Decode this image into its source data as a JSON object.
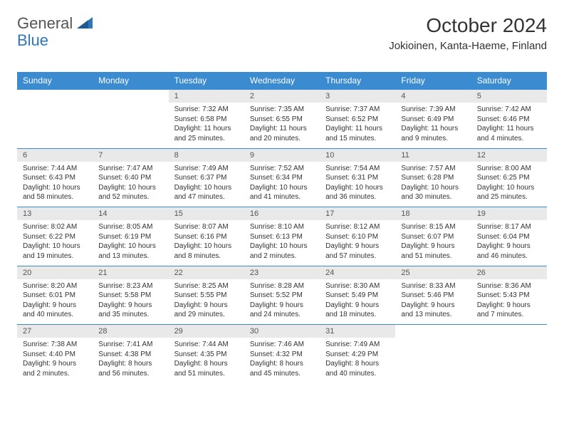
{
  "logo": {
    "general": "General",
    "blue": "Blue"
  },
  "title": "October 2024",
  "location": "Jokioinen, Kanta-Haeme, Finland",
  "weekdays": [
    "Sunday",
    "Monday",
    "Tuesday",
    "Wednesday",
    "Thursday",
    "Friday",
    "Saturday"
  ],
  "colors": {
    "header_bg": "#3b8bd0",
    "header_text": "#ffffff",
    "daynum_bg": "#e9e9e9",
    "border": "#3b8bd0",
    "logo_blue": "#2f77bb",
    "text": "#333333",
    "background": "#ffffff"
  },
  "fonts": {
    "title_size_pt": 21,
    "location_size_pt": 11,
    "weekday_size_pt": 9,
    "daynum_size_pt": 8,
    "cell_size_pt": 7.5
  },
  "weeks": [
    {
      "nums": [
        "",
        "",
        "1",
        "2",
        "3",
        "4",
        "5"
      ],
      "cells": [
        "",
        "",
        "Sunrise: 7:32 AM\nSunset: 6:58 PM\nDaylight: 11 hours and 25 minutes.",
        "Sunrise: 7:35 AM\nSunset: 6:55 PM\nDaylight: 11 hours and 20 minutes.",
        "Sunrise: 7:37 AM\nSunset: 6:52 PM\nDaylight: 11 hours and 15 minutes.",
        "Sunrise: 7:39 AM\nSunset: 6:49 PM\nDaylight: 11 hours and 9 minutes.",
        "Sunrise: 7:42 AM\nSunset: 6:46 PM\nDaylight: 11 hours and 4 minutes."
      ]
    },
    {
      "nums": [
        "6",
        "7",
        "8",
        "9",
        "10",
        "11",
        "12"
      ],
      "cells": [
        "Sunrise: 7:44 AM\nSunset: 6:43 PM\nDaylight: 10 hours and 58 minutes.",
        "Sunrise: 7:47 AM\nSunset: 6:40 PM\nDaylight: 10 hours and 52 minutes.",
        "Sunrise: 7:49 AM\nSunset: 6:37 PM\nDaylight: 10 hours and 47 minutes.",
        "Sunrise: 7:52 AM\nSunset: 6:34 PM\nDaylight: 10 hours and 41 minutes.",
        "Sunrise: 7:54 AM\nSunset: 6:31 PM\nDaylight: 10 hours and 36 minutes.",
        "Sunrise: 7:57 AM\nSunset: 6:28 PM\nDaylight: 10 hours and 30 minutes.",
        "Sunrise: 8:00 AM\nSunset: 6:25 PM\nDaylight: 10 hours and 25 minutes."
      ]
    },
    {
      "nums": [
        "13",
        "14",
        "15",
        "16",
        "17",
        "18",
        "19"
      ],
      "cells": [
        "Sunrise: 8:02 AM\nSunset: 6:22 PM\nDaylight: 10 hours and 19 minutes.",
        "Sunrise: 8:05 AM\nSunset: 6:19 PM\nDaylight: 10 hours and 13 minutes.",
        "Sunrise: 8:07 AM\nSunset: 6:16 PM\nDaylight: 10 hours and 8 minutes.",
        "Sunrise: 8:10 AM\nSunset: 6:13 PM\nDaylight: 10 hours and 2 minutes.",
        "Sunrise: 8:12 AM\nSunset: 6:10 PM\nDaylight: 9 hours and 57 minutes.",
        "Sunrise: 8:15 AM\nSunset: 6:07 PM\nDaylight: 9 hours and 51 minutes.",
        "Sunrise: 8:17 AM\nSunset: 6:04 PM\nDaylight: 9 hours and 46 minutes."
      ]
    },
    {
      "nums": [
        "20",
        "21",
        "22",
        "23",
        "24",
        "25",
        "26"
      ],
      "cells": [
        "Sunrise: 8:20 AM\nSunset: 6:01 PM\nDaylight: 9 hours and 40 minutes.",
        "Sunrise: 8:23 AM\nSunset: 5:58 PM\nDaylight: 9 hours and 35 minutes.",
        "Sunrise: 8:25 AM\nSunset: 5:55 PM\nDaylight: 9 hours and 29 minutes.",
        "Sunrise: 8:28 AM\nSunset: 5:52 PM\nDaylight: 9 hours and 24 minutes.",
        "Sunrise: 8:30 AM\nSunset: 5:49 PM\nDaylight: 9 hours and 18 minutes.",
        "Sunrise: 8:33 AM\nSunset: 5:46 PM\nDaylight: 9 hours and 13 minutes.",
        "Sunrise: 8:36 AM\nSunset: 5:43 PM\nDaylight: 9 hours and 7 minutes."
      ]
    },
    {
      "nums": [
        "27",
        "28",
        "29",
        "30",
        "31",
        "",
        ""
      ],
      "cells": [
        "Sunrise: 7:38 AM\nSunset: 4:40 PM\nDaylight: 9 hours and 2 minutes.",
        "Sunrise: 7:41 AM\nSunset: 4:38 PM\nDaylight: 8 hours and 56 minutes.",
        "Sunrise: 7:44 AM\nSunset: 4:35 PM\nDaylight: 8 hours and 51 minutes.",
        "Sunrise: 7:46 AM\nSunset: 4:32 PM\nDaylight: 8 hours and 45 minutes.",
        "Sunrise: 7:49 AM\nSunset: 4:29 PM\nDaylight: 8 hours and 40 minutes.",
        "",
        ""
      ]
    }
  ]
}
